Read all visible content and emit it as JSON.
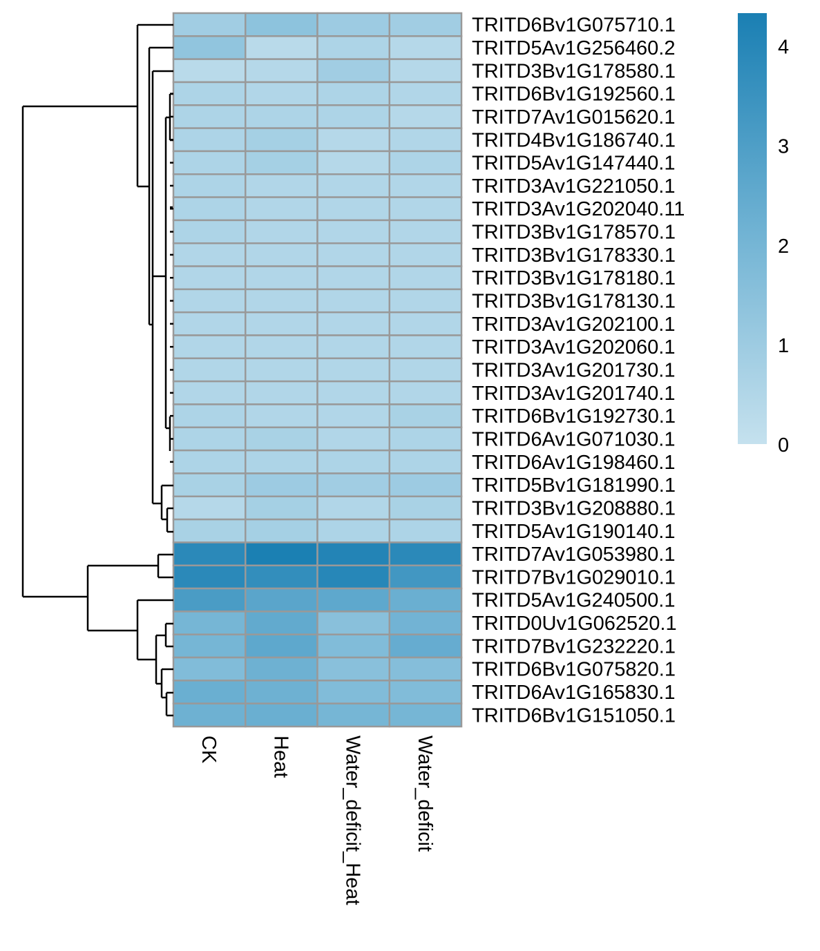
{
  "chart_data": {
    "type": "heatmap",
    "title": "",
    "columns": [
      "CK",
      "Heat",
      "Water_deficit_Heat",
      "Water_deficit"
    ],
    "rows": [
      "TRITD6Bv1G075710.1",
      "TRITD5Av1G256460.2",
      "TRITD3Bv1G178580.1",
      "TRITD6Bv1G192560.1",
      "TRITD7Av1G015620.1",
      "TRITD4Bv1G186740.1",
      "TRITD5Av1G147440.1",
      "TRITD3Av1G221050.1",
      "TRITD3Av1G202040.11",
      "TRITD3Bv1G178570.1",
      "TRITD3Bv1G178330.1",
      "TRITD3Bv1G178180.1",
      "TRITD3Bv1G178130.1",
      "TRITD3Av1G202100.1",
      "TRITD3Av1G202060.1",
      "TRITD3Av1G201730.1",
      "TRITD3Av1G201740.1",
      "TRITD6Bv1G192730.1",
      "TRITD6Av1G071030.1",
      "TRITD6Av1G198460.1",
      "TRITD5Bv1G181990.1",
      "TRITD3Bv1G208880.1",
      "TRITD5Av1G190140.1",
      "TRITD7Av1G053980.1",
      "TRITD7Bv1G029010.1",
      "TRITD5Av1G240500.1",
      "TRITD0Uv1G062520.1",
      "TRITD7Bv1G232220.1",
      "TRITD6Bv1G075820.1",
      "TRITD6Av1G165830.1",
      "TRITD6Bv1G151050.1"
    ],
    "values": [
      [
        0.9,
        1.4,
        1.0,
        0.9
      ],
      [
        1.3,
        0.3,
        0.6,
        0.4
      ],
      [
        0.3,
        0.4,
        0.9,
        0.4
      ],
      [
        0.6,
        0.5,
        0.6,
        0.5
      ],
      [
        0.6,
        0.6,
        0.6,
        0.4
      ],
      [
        0.6,
        0.8,
        0.4,
        0.5
      ],
      [
        0.6,
        0.8,
        0.4,
        0.6
      ],
      [
        0.6,
        0.5,
        0.5,
        0.5
      ],
      [
        0.6,
        0.5,
        0.5,
        0.5
      ],
      [
        0.6,
        0.5,
        0.5,
        0.5
      ],
      [
        0.5,
        0.5,
        0.5,
        0.5
      ],
      [
        0.5,
        0.5,
        0.5,
        0.5
      ],
      [
        0.5,
        0.5,
        0.5,
        0.5
      ],
      [
        0.5,
        0.5,
        0.5,
        0.5
      ],
      [
        0.5,
        0.5,
        0.5,
        0.5
      ],
      [
        0.5,
        0.5,
        0.5,
        0.5
      ],
      [
        0.5,
        0.5,
        0.5,
        0.5
      ],
      [
        0.6,
        0.5,
        0.5,
        0.7
      ],
      [
        0.6,
        0.7,
        0.5,
        0.6
      ],
      [
        0.6,
        0.6,
        0.6,
        0.6
      ],
      [
        0.7,
        1.0,
        0.9,
        1.0
      ],
      [
        0.4,
        0.8,
        0.5,
        0.7
      ],
      [
        0.7,
        0.8,
        0.6,
        0.6
      ],
      [
        3.9,
        4.3,
        4.1,
        3.9
      ],
      [
        3.9,
        3.7,
        4.0,
        3.3
      ],
      [
        3.1,
        2.7,
        2.6,
        2.3
      ],
      [
        2.0,
        2.5,
        1.5,
        2.1
      ],
      [
        2.0,
        2.6,
        1.7,
        2.4
      ],
      [
        1.7,
        2.2,
        1.5,
        1.6
      ],
      [
        2.3,
        2.2,
        1.7,
        1.7
      ],
      [
        2.2,
        2.3,
        2.0,
        2.0
      ]
    ],
    "legend": {
      "ticks": [
        0,
        1,
        2,
        3,
        4
      ],
      "range": [
        0,
        4.33
      ],
      "placement": "right",
      "colors": [
        "#c5e1ee",
        "#6fb2d3",
        "#1a7fb3"
      ]
    },
    "dendrogram": "rows"
  }
}
